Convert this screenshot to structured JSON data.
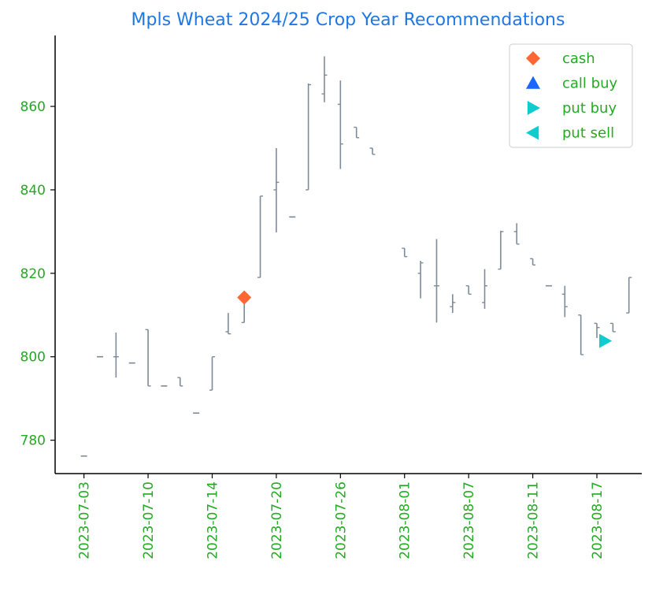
{
  "chart_data": {
    "type": "ohlc",
    "title": "Mpls Wheat 2024/25 Crop Year Recommendations",
    "xlabel": "",
    "ylabel": "",
    "ylim": [
      772,
      877
    ],
    "y_ticks": [
      780,
      800,
      820,
      840,
      860
    ],
    "x_tick_labels": [
      "2023-07-03",
      "2023-07-10",
      "2023-07-14",
      "2023-07-20",
      "2023-07-26",
      "2023-08-01",
      "2023-08-07",
      "2023-08-11",
      "2023-08-17"
    ],
    "x_tick_index": [
      0,
      4,
      8,
      12,
      16,
      20,
      24,
      28,
      32
    ],
    "x_range": [
      -1.8,
      34.8
    ],
    "grid": false,
    "bar_color": "#7d8b99",
    "bars": [
      {
        "i": 0,
        "open": 776.2,
        "high": 776.2,
        "low": 776.2,
        "close": 776.2
      },
      {
        "i": 1,
        "open": 800.0,
        "high": 800.0,
        "low": 800.0,
        "close": 800.0
      },
      {
        "i": 2,
        "open": 800.0,
        "high": 805.8,
        "low": 795.0,
        "close": 800.0
      },
      {
        "i": 3,
        "open": 798.5,
        "high": 798.5,
        "low": 798.5,
        "close": 798.5
      },
      {
        "i": 4,
        "open": 806.5,
        "high": 806.5,
        "low": 793.0,
        "close": 793.0
      },
      {
        "i": 5,
        "open": 793.0,
        "high": 793.0,
        "low": 793.0,
        "close": 793.0
      },
      {
        "i": 6,
        "open": 795.0,
        "high": 795.0,
        "low": 793.0,
        "close": 793.0
      },
      {
        "i": 7,
        "open": 786.5,
        "high": 786.5,
        "low": 786.5,
        "close": 786.5
      },
      {
        "i": 8,
        "open": 792.0,
        "high": 800.0,
        "low": 792.0,
        "close": 800.0
      },
      {
        "i": 9,
        "open": 806.0,
        "high": 810.5,
        "low": 805.5,
        "close": 805.5
      },
      {
        "i": 10,
        "open": 808.2,
        "high": 815.0,
        "low": 808.2,
        "close": 814.0
      },
      {
        "i": 11,
        "open": 819.0,
        "high": 838.5,
        "low": 819.0,
        "close": 838.5
      },
      {
        "i": 12,
        "open": 840.0,
        "high": 850.0,
        "low": 829.8,
        "close": 841.8
      },
      {
        "i": 13,
        "open": 833.5,
        "high": 833.5,
        "low": 833.5,
        "close": 833.5
      },
      {
        "i": 14,
        "open": 840.0,
        "high": 865.5,
        "low": 840.0,
        "close": 865.2
      },
      {
        "i": 15,
        "open": 863.0,
        "high": 872.0,
        "low": 861.0,
        "close": 867.5
      },
      {
        "i": 16,
        "open": 860.5,
        "high": 866.2,
        "low": 845.0,
        "close": 851.0
      },
      {
        "i": 17,
        "open": 855.0,
        "high": 855.0,
        "low": 852.5,
        "close": 852.5
      },
      {
        "i": 18,
        "open": 850.0,
        "high": 850.0,
        "low": 848.5,
        "close": 848.5
      },
      {
        "i": 20,
        "open": 826.0,
        "high": 826.0,
        "low": 824.0,
        "close": 824.0
      },
      {
        "i": 21,
        "open": 820.0,
        "high": 823.0,
        "low": 814.0,
        "close": 822.5
      },
      {
        "i": 22,
        "open": 817.0,
        "high": 828.2,
        "low": 808.2,
        "close": 817.0
      },
      {
        "i": 23,
        "open": 812.0,
        "high": 815.0,
        "low": 810.5,
        "close": 813.0
      },
      {
        "i": 24,
        "open": 817.0,
        "high": 817.0,
        "low": 815.0,
        "close": 815.0
      },
      {
        "i": 25,
        "open": 813.0,
        "high": 821.0,
        "low": 811.5,
        "close": 817.0
      },
      {
        "i": 26,
        "open": 821.0,
        "high": 830.2,
        "low": 821.0,
        "close": 830.0
      },
      {
        "i": 27,
        "open": 830.0,
        "high": 832.0,
        "low": 827.0,
        "close": 827.0
      },
      {
        "i": 28,
        "open": 823.5,
        "high": 823.5,
        "low": 822.0,
        "close": 822.0
      },
      {
        "i": 29,
        "open": 817.0,
        "high": 817.0,
        "low": 817.0,
        "close": 817.0
      },
      {
        "i": 30,
        "open": 815.0,
        "high": 817.0,
        "low": 809.5,
        "close": 812.0
      },
      {
        "i": 31,
        "open": 810.0,
        "high": 810.0,
        "low": 800.5,
        "close": 800.5
      },
      {
        "i": 32,
        "open": 808.0,
        "high": 808.0,
        "low": 804.5,
        "close": 807.0
      },
      {
        "i": 33,
        "open": 808.0,
        "high": 808.0,
        "low": 806.0,
        "close": 806.0
      },
      {
        "i": 34,
        "open": 810.5,
        "high": 819.0,
        "low": 810.5,
        "close": 819.0
      }
    ],
    "markers": [
      {
        "series": "cash",
        "i": 10,
        "y": 814.2
      },
      {
        "series": "put buy",
        "i": 32.5,
        "y": 803.8
      }
    ],
    "legend": {
      "placement": "top-right",
      "entries": [
        {
          "label": "cash",
          "shape": "diamond",
          "color": "#ff6633"
        },
        {
          "label": "call buy",
          "shape": "triangle-up",
          "color": "#1a66ff"
        },
        {
          "label": "put buy",
          "shape": "triangle-right",
          "color": "#11cccc"
        },
        {
          "label": "put sell",
          "shape": "triangle-left",
          "color": "#11cccc"
        }
      ]
    }
  }
}
